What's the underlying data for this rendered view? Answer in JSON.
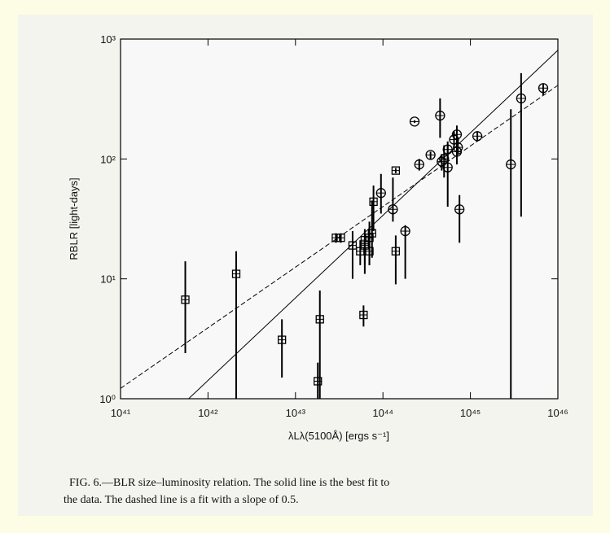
{
  "chart_data": {
    "type": "scatter",
    "x_label": "λLλ(5100Å) [ergs s⁻¹]",
    "y_label": "RBLR [light-days]",
    "log_x": true,
    "log_y": true,
    "xlim": [
      1e+41,
      1e+46
    ],
    "ylim": [
      1,
      1000
    ],
    "xticks": [
      {
        "value": 1e+41,
        "label": "10⁴¹"
      },
      {
        "value": 1e+42,
        "label": "10⁴²"
      },
      {
        "value": 1e+43,
        "label": "10⁴³"
      },
      {
        "value": 1e+44,
        "label": "10⁴⁴"
      },
      {
        "value": 1e+45,
        "label": "10⁴⁵"
      },
      {
        "value": 1e+46,
        "label": "10⁴⁶"
      }
    ],
    "yticks": [
      {
        "value": 1,
        "label": "10⁰"
      },
      {
        "value": 10,
        "label": "10¹"
      },
      {
        "value": 100,
        "label": "10²"
      },
      {
        "value": 1000,
        "label": "10³"
      }
    ],
    "series": [
      {
        "marker": "square",
        "color": "#000000",
        "x": [
          5.5e+41,
          2.1e+42,
          7e+42,
          1.8e+43,
          1.9e+43,
          6e+43,
          2.9e+43,
          3.3e+43,
          4.5e+43,
          5.5e+43,
          6.2e+43,
          6.2e+43,
          7e+43,
          7e+43,
          7.5e+43,
          1.4e+44,
          1.4e+44,
          7.8e+43
        ],
        "values": [
          6.7,
          11,
          3.1,
          1.4,
          4.6,
          5,
          22,
          22,
          19,
          17,
          19,
          21,
          17,
          22,
          24,
          17,
          80,
          44
        ],
        "y_low": [
          2.4,
          1,
          1.5,
          1,
          1,
          4,
          20,
          20,
          10,
          13,
          11,
          13,
          13,
          13,
          15,
          9,
          76,
          25
        ],
        "y_high": [
          14,
          17,
          4.6,
          2,
          8,
          6,
          24,
          24,
          25,
          21,
          24,
          26,
          23,
          30,
          45,
          23,
          84,
          60
        ]
      },
      {
        "marker": "circle",
        "color": "#000000",
        "x": [
          1.3e+44,
          9.5e+43,
          1.8e+44,
          2.3e+44,
          2.6e+44,
          3.5e+44,
          4.5e+44,
          4.7e+44,
          5e+44,
          5.5e+44,
          5.5e+44,
          6.5e+44,
          7e+44,
          7e+44,
          7.5e+44,
          1.2e+45,
          2.9e+45,
          3.8e+45,
          6.8e+45,
          7.2e+44
        ],
        "values": [
          38,
          52,
          25,
          205,
          90,
          108,
          230,
          95,
          100,
          120,
          85,
          145,
          160,
          115,
          38,
          155,
          90,
          320,
          390,
          125
        ],
        "y_low": [
          30,
          35,
          10,
          200,
          80,
          100,
          150,
          80,
          70,
          100,
          40,
          120,
          130,
          90,
          20,
          140,
          1,
          33,
          340,
          110
        ],
        "y_high": [
          70,
          75,
          28,
          210,
          100,
          115,
          320,
          110,
          130,
          140,
          130,
          170,
          190,
          140,
          50,
          170,
          260,
          520,
          420,
          150
        ]
      }
    ],
    "fit_lines": [
      {
        "style": "solid",
        "x": [
          6e+41,
          1e+46
        ],
        "y": [
          1,
          806
        ]
      },
      {
        "style": "dashed",
        "x": [
          1e+41,
          1e+46
        ],
        "y": [
          1.22,
          411
        ]
      }
    ],
    "caption": [
      "FIG. 6.—BLR size–luminosity relation. The solid line is the best fit to",
      "the data. The dashed line is a fit with a slope of 0.5."
    ]
  }
}
